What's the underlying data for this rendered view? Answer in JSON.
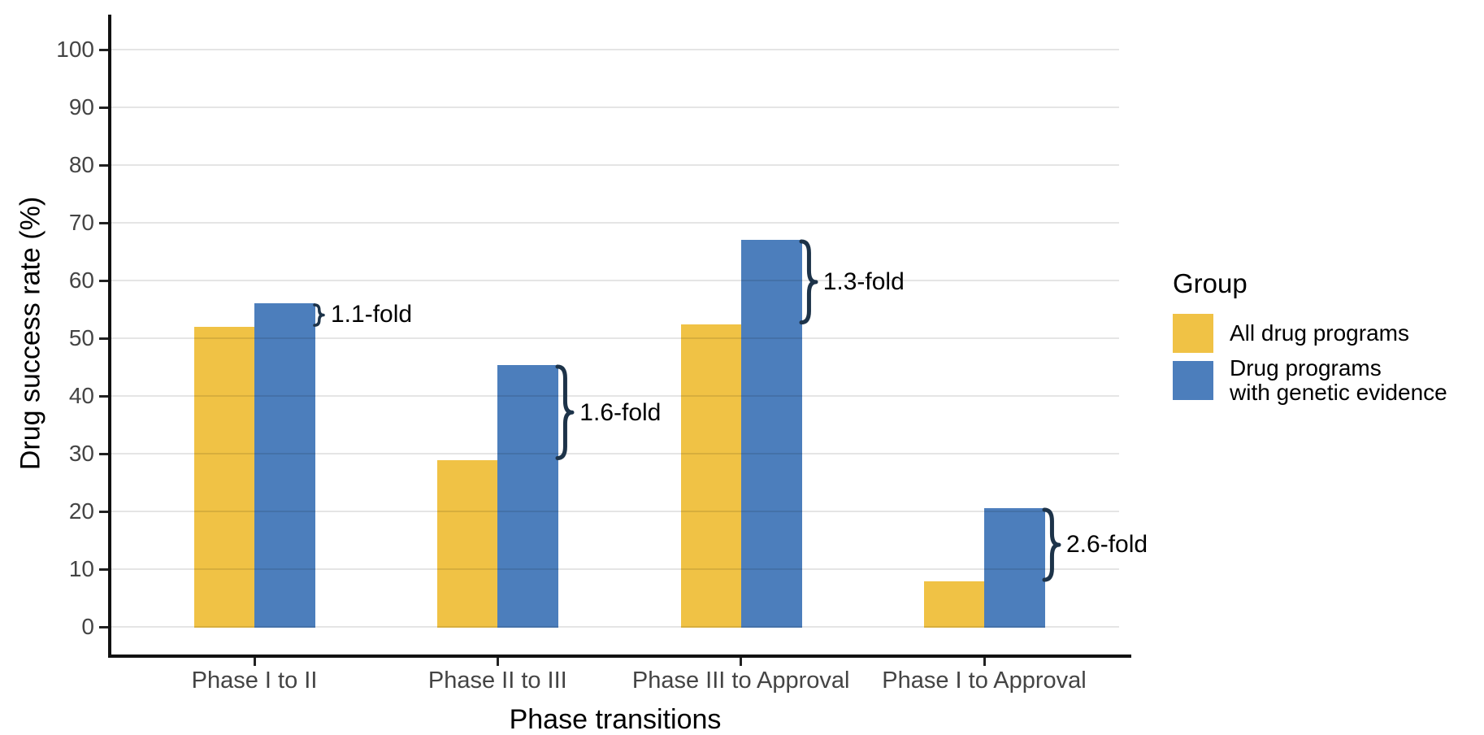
{
  "legend": {
    "title": "Group",
    "items": [
      {
        "lines": [
          "All drug programs"
        ],
        "color": "#F0C245"
      },
      {
        "lines": [
          "Drug programs",
          "with genetic evidence"
        ],
        "color": "#4C7EBC"
      }
    ]
  },
  "chart_data": {
    "type": "bar",
    "title": "",
    "xlabel": "Phase transitions",
    "ylabel": "Drug success rate (%)",
    "categories": [
      "Phase I to II",
      "Phase II to III",
      "Phase III to Approval",
      "Phase I to Approval"
    ],
    "series": [
      {
        "name": "All drug programs",
        "color": "#F0C245",
        "values": [
          52.0,
          28.9,
          52.4,
          7.9
        ]
      },
      {
        "name": "Drug programs with genetic evidence",
        "color": "#4C7EBC",
        "values": [
          56.1,
          45.3,
          67.0,
          20.6
        ]
      }
    ],
    "annotations": [
      {
        "category": "Phase I to II",
        "label": "1.1-fold"
      },
      {
        "category": "Phase II to III",
        "label": "1.6-fold"
      },
      {
        "category": "Phase III to Approval",
        "label": "1.3-fold"
      },
      {
        "category": "Phase I to Approval",
        "label": "2.6-fold"
      }
    ],
    "annotation_color": "#1d3349",
    "ylim": [
      0,
      100
    ],
    "yticks": [
      0,
      10,
      20,
      30,
      40,
      50,
      60,
      70,
      80,
      90,
      100
    ],
    "grid": true,
    "gridline_color": "#e4e4e4",
    "axis_color": "#111111",
    "legend_position": "right"
  }
}
